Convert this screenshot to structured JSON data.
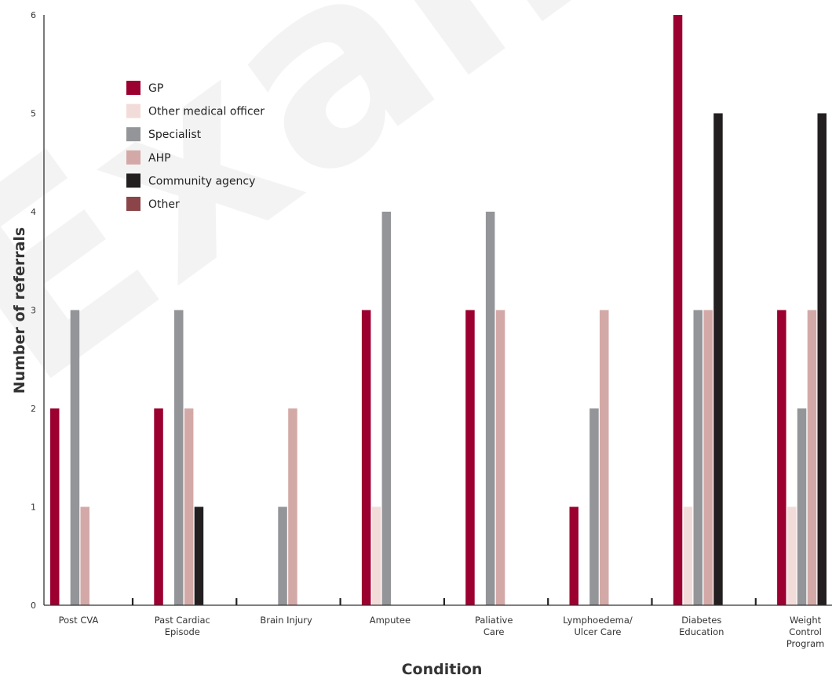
{
  "watermark_text": "Examp",
  "chart_data": {
    "type": "bar",
    "xlabel": "Condition",
    "ylabel": "Number of referrals",
    "ylim": [
      0,
      6
    ],
    "yticks": [
      "0",
      "1",
      "2",
      "3",
      "4",
      "5",
      "6"
    ],
    "legend_position": "top-left",
    "grid": false,
    "categories": [
      [
        "Post CVA"
      ],
      [
        "Past Cardiac",
        "Episode"
      ],
      [
        "Brain Injury"
      ],
      [
        "Amputee"
      ],
      [
        "Paliative",
        "Care"
      ],
      [
        "Lymphoedema/",
        "Ulcer Care"
      ],
      [
        "Diabetes",
        "Education"
      ],
      [
        "Weight",
        "Control",
        "Program"
      ]
    ],
    "series": [
      {
        "name": "GP",
        "color": "#9b0030",
        "values": [
          2,
          2,
          0,
          3,
          3,
          1,
          6,
          3
        ]
      },
      {
        "name": "Other medical officer",
        "color": "#f2dcd9",
        "values": [
          0,
          0,
          0,
          1,
          0,
          0,
          1,
          1
        ]
      },
      {
        "name": "Specialist",
        "color": "#939598",
        "values": [
          3,
          3,
          1,
          4,
          4,
          2,
          3,
          2
        ]
      },
      {
        "name": "AHP",
        "color": "#d3a9a7",
        "values": [
          1,
          2,
          2,
          0,
          3,
          3,
          3,
          3
        ]
      },
      {
        "name": "Community agency",
        "color": "#231f20",
        "values": [
          0,
          1,
          0,
          0,
          0,
          0,
          5,
          5
        ]
      },
      {
        "name": "Other",
        "color": "#8b4448",
        "values": [
          0,
          0,
          0,
          0,
          0,
          0,
          0,
          0
        ]
      }
    ]
  }
}
